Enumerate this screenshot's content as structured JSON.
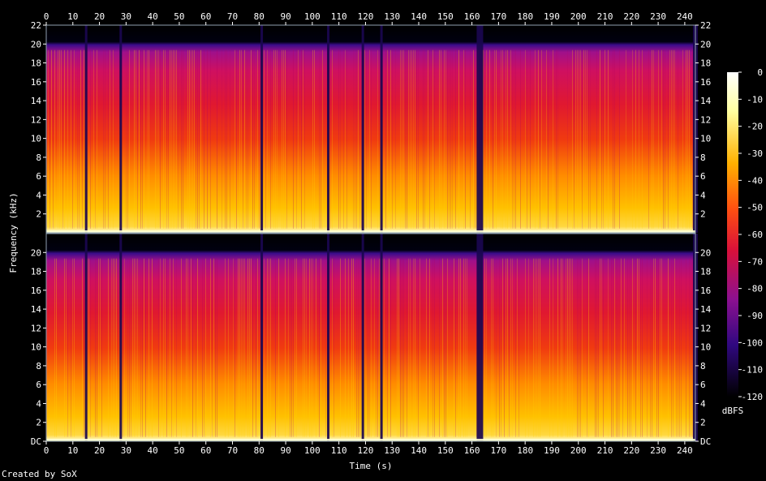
{
  "credit": "Created by SoX",
  "chart_data": {
    "type": "heatmap",
    "subtype": "spectrogram",
    "channels": 2,
    "xlabel": "Time (s)",
    "ylabel": "Frequency (kHz)",
    "xlim": [
      0,
      244
    ],
    "ylim": [
      0,
      22
    ],
    "x_ticks": [
      "0",
      "10",
      "20",
      "30",
      "40",
      "50",
      "60",
      "70",
      "80",
      "90",
      "100",
      "110",
      "120",
      "130",
      "140",
      "150",
      "160",
      "170",
      "180",
      "190",
      "200",
      "210",
      "220",
      "230",
      "240"
    ],
    "y_ticks_top": [
      "2",
      "4",
      "6",
      "8",
      "10",
      "12",
      "14",
      "16",
      "18",
      "20",
      "22"
    ],
    "y_ticks_bottom": [
      "DC",
      "2",
      "4",
      "6",
      "8",
      "10",
      "12",
      "14",
      "16",
      "18",
      "20"
    ],
    "colorbar": {
      "label": "dBFS",
      "range": [
        -120,
        0
      ],
      "ticks": [
        "0",
        "-10",
        "-20",
        "-30",
        "-40",
        "-50",
        "-60",
        "-70",
        "-80",
        "-90",
        "-100",
        "-110",
        "-120"
      ]
    },
    "gaps_seconds": [
      15,
      28,
      81,
      106,
      119,
      126,
      163,
      244
    ],
    "lowpass_cutoff_khz": 20,
    "colors": {
      "quiet": "#000000",
      "low": "#2a0a6e",
      "mid_low": "#8a1080",
      "mid": "#d81038",
      "mid_high": "#ff4010",
      "high": "#ffa000",
      "peak": "#ffffe0",
      "frame": "#9ab"
    }
  }
}
